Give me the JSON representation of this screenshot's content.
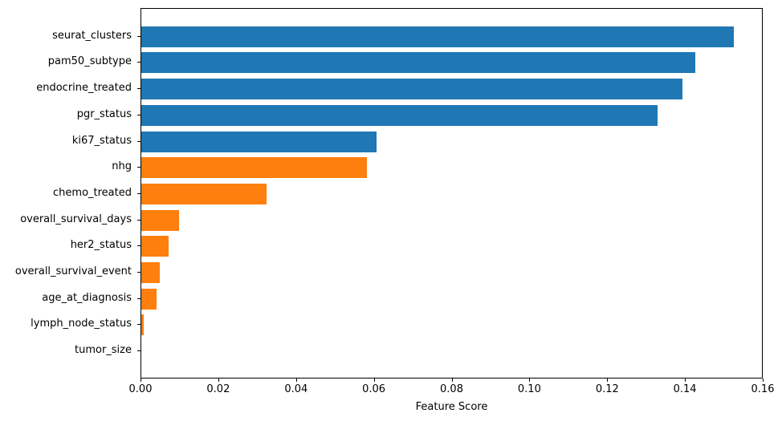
{
  "chart_data": {
    "type": "bar",
    "orientation": "horizontal",
    "title": "",
    "xlabel": "Feature Score",
    "ylabel": "",
    "grid": false,
    "legend": false,
    "xlim": [
      0,
      0.16
    ],
    "xticks": [
      0.0,
      0.02,
      0.04,
      0.06,
      0.08,
      0.1,
      0.12,
      0.14,
      0.16
    ],
    "xtick_labels": [
      "0.00",
      "0.02",
      "0.04",
      "0.06",
      "0.08",
      "0.10",
      "0.12",
      "0.14",
      "0.16"
    ],
    "categories": [
      "seurat_clusters",
      "pam50_subtype",
      "endocrine_treated",
      "pgr_status",
      "ki67_status",
      "nhg",
      "chemo_treated",
      "overall_survival_days",
      "her2_status",
      "overall_survival_event",
      "age_at_diagnosis",
      "lymph_node_status",
      "tumor_size"
    ],
    "values": [
      0.1524,
      0.1424,
      0.1391,
      0.1327,
      0.0605,
      0.0581,
      0.0322,
      0.0096,
      0.007,
      0.0047,
      0.0039,
      0.0006,
      0.0
    ],
    "bar_colors": [
      "#1f77b4",
      "#1f77b4",
      "#1f77b4",
      "#1f77b4",
      "#1f77b4",
      "#ff7f0e",
      "#ff7f0e",
      "#ff7f0e",
      "#ff7f0e",
      "#ff7f0e",
      "#ff7f0e",
      "#ff7f0e",
      "#ff7f0e"
    ]
  },
  "colors": {
    "blue": "#1f77b4",
    "orange": "#ff7f0e",
    "axis": "#000000",
    "background": "#ffffff"
  }
}
